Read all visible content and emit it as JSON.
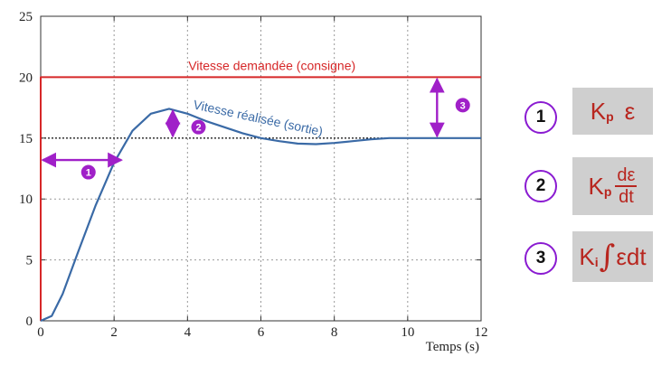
{
  "chart_data": {
    "type": "line",
    "title": "",
    "xlabel": "Temps (s)",
    "ylabel": "",
    "xlim": [
      0,
      12
    ],
    "ylim": [
      0,
      25
    ],
    "xticks": [
      0,
      2,
      4,
      6,
      8,
      10,
      12
    ],
    "yticks": [
      0,
      5,
      10,
      15,
      20,
      25
    ],
    "grid": true,
    "series": [
      {
        "name": "Vitesse demandée (consigne)",
        "color": "#d62728",
        "x": [
          0,
          0,
          12
        ],
        "y": [
          0,
          20,
          20
        ]
      },
      {
        "name": "Vitesse réalisée (sortie)",
        "color": "#3a6aa6",
        "x": [
          0,
          0.3,
          0.6,
          1.0,
          1.5,
          2.0,
          2.5,
          3.0,
          3.5,
          4.0,
          4.5,
          5.0,
          5.5,
          6.0,
          6.5,
          7.0,
          7.5,
          8.0,
          8.5,
          9.0,
          9.5,
          10.0,
          11.0,
          12.0
        ],
        "y": [
          0,
          0.4,
          2.2,
          5.5,
          9.5,
          13.0,
          15.6,
          17.0,
          17.4,
          17.0,
          16.4,
          15.9,
          15.4,
          15.0,
          14.75,
          14.55,
          14.5,
          14.6,
          14.75,
          14.9,
          15.0,
          15.0,
          15.0,
          15.0
        ]
      }
    ],
    "reference_line": {
      "y": 15,
      "style": "dotted",
      "color": "#222222"
    },
    "markers": [
      {
        "label": "1",
        "type": "horizontal",
        "y": 13.2,
        "x_from": 0,
        "x_to": 2.2,
        "label_x": 1.3,
        "label_y": 12.2
      },
      {
        "label": "2",
        "type": "vertical",
        "x": 3.6,
        "y_from": 15,
        "y_to": 17.4,
        "label_x": 4.3,
        "label_y": 15.9
      },
      {
        "label": "3",
        "type": "vertical",
        "x": 10.8,
        "y_from": 15,
        "y_to": 20,
        "label_x": 11.5,
        "label_y": 17.7
      }
    ],
    "annotations": [
      {
        "text": "Vitesse demandée (consigne)",
        "x": 6.3,
        "y": 20.6,
        "color": "#d62728"
      },
      {
        "text": "Vitesse réalisée (sortie)",
        "x": 5.9,
        "y": 16.3,
        "color": "#3a6aa6",
        "rotate": 12
      }
    ],
    "colors": {
      "consigne": "#d62728",
      "sortie": "#3a6aa6",
      "marker": "#a020c8"
    }
  },
  "legend": {
    "items": [
      {
        "number": "1",
        "K": "K",
        "sub": "p",
        "expr": "ε"
      },
      {
        "number": "2",
        "K": "K",
        "sub": "p",
        "num": "dε",
        "den": "dt"
      },
      {
        "number": "3",
        "K": "K",
        "sub": "i",
        "integral": "∫",
        "expr": "εdt"
      }
    ]
  }
}
